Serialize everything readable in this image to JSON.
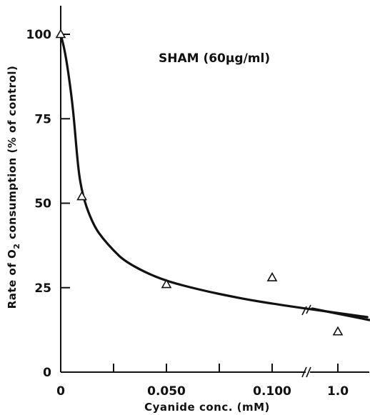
{
  "chart_data": {
    "type": "scatter",
    "title": "",
    "annotation": "SHAM (60µg/ml)",
    "xlabel": "Cyanide conc. (mM)",
    "ylabel_parts": {
      "before": "Rate of O",
      "subscript": "2",
      "after": " consumption (% of control)"
    },
    "ylim": [
      0,
      108
    ],
    "y_ticks": [
      0,
      25,
      50,
      75,
      100
    ],
    "x_axis_scale": "linear from 0 to 0.100 with an axis break, then 1.0",
    "x_ticks": [
      {
        "value": 0,
        "label": "0"
      },
      {
        "value": 0.025,
        "label": ""
      },
      {
        "value": 0.05,
        "label": "0.050"
      },
      {
        "value": 0.075,
        "label": ""
      },
      {
        "value": 0.1,
        "label": "0.100"
      },
      {
        "value": 1.0,
        "label": "1.0"
      }
    ],
    "axis_break": true,
    "marker": "open-triangle",
    "series": [
      {
        "points": [
          {
            "x": 0,
            "y": 100
          },
          {
            "x": 0.01,
            "y": 52
          },
          {
            "x": 0.05,
            "y": 26
          },
          {
            "x": 0.1,
            "y": 28
          },
          {
            "x": 1.0,
            "y": 12
          }
        ]
      }
    ],
    "fitted_curve": [
      {
        "x": 0.0,
        "y": 100
      },
      {
        "x": 0.002,
        "y": 95
      },
      {
        "x": 0.004,
        "y": 87
      },
      {
        "x": 0.006,
        "y": 77
      },
      {
        "x": 0.008,
        "y": 62
      },
      {
        "x": 0.0095,
        "y": 55
      },
      {
        "x": 0.012,
        "y": 49
      },
      {
        "x": 0.016,
        "y": 43
      },
      {
        "x": 0.02,
        "y": 39.5
      },
      {
        "x": 0.025,
        "y": 36
      },
      {
        "x": 0.03,
        "y": 33
      },
      {
        "x": 0.04,
        "y": 29.5
      },
      {
        "x": 0.05,
        "y": 27
      },
      {
        "x": 0.06,
        "y": 25.3
      },
      {
        "x": 0.07,
        "y": 23.8
      },
      {
        "x": 0.08,
        "y": 22.5
      },
      {
        "x": 0.09,
        "y": 21.3
      },
      {
        "x": 0.1,
        "y": 20.3
      },
      {
        "x": 0.115,
        "y": 18.9
      },
      {
        "x": 0.13,
        "y": 17.6
      },
      {
        "x": 0.145,
        "y": 16.3
      }
    ],
    "grid": false,
    "legend": "none"
  }
}
